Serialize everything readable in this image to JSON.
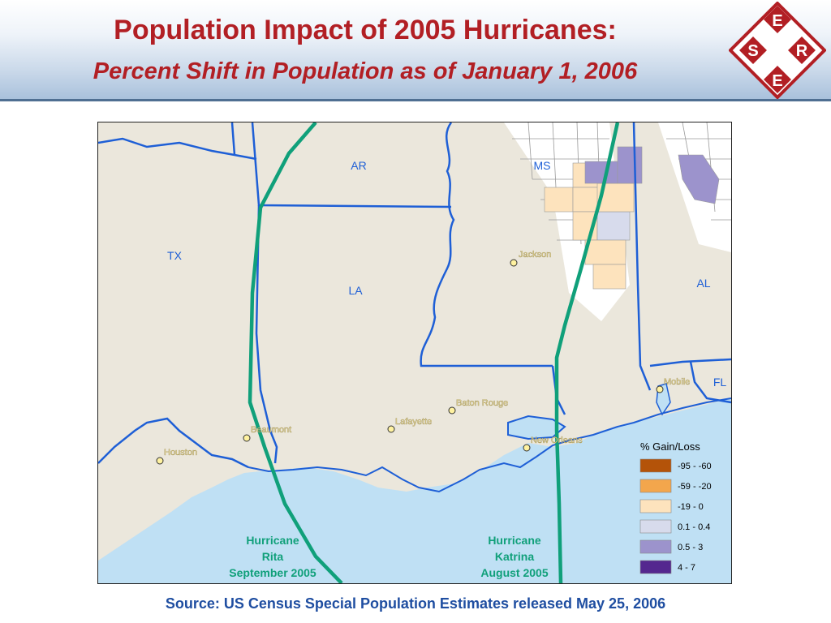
{
  "header": {
    "title": "Population Impact of 2005 Hurricanes:",
    "subtitle": "Percent Shift in Population as of January 1, 2006"
  },
  "logo": {
    "letters": [
      "E",
      "S",
      "R",
      "E"
    ],
    "color": "#b21f24"
  },
  "map": {
    "states": [
      "AR",
      "MS",
      "TX",
      "LA",
      "AL",
      "FL"
    ],
    "cities": [
      "Jackson",
      "Baton Rouge",
      "Lafayette",
      "Beaumont",
      "Houston",
      "New Orleans",
      "Mobile"
    ],
    "hurricanes": [
      {
        "name": "Hurricane",
        "line2": "Rita",
        "date": "September 2005"
      },
      {
        "name": "Hurricane",
        "line2": "Katrina",
        "date": "August 2005"
      }
    ],
    "legend": {
      "title": "% Gain/Loss",
      "items": [
        {
          "label": "-95 - -60",
          "color": "#b45309"
        },
        {
          "label": "-59 - -20",
          "color": "#f3a64c"
        },
        {
          "label": "-19 - 0",
          "color": "#fde3bd"
        },
        {
          "label": "0.1 - 0.4",
          "color": "#d7dbec"
        },
        {
          "label": "0.5 - 3",
          "color": "#9c93cc"
        },
        {
          "label": "4 - 7",
          "color": "#54278f"
        }
      ]
    },
    "colors": {
      "land": "#ebe7dc",
      "water": "#bfe0f4",
      "borders": "#1e5fd6",
      "tracks": "#10a07a"
    }
  },
  "footer": {
    "source": "Source: US Census Special Population Estimates released May 25, 2006"
  }
}
